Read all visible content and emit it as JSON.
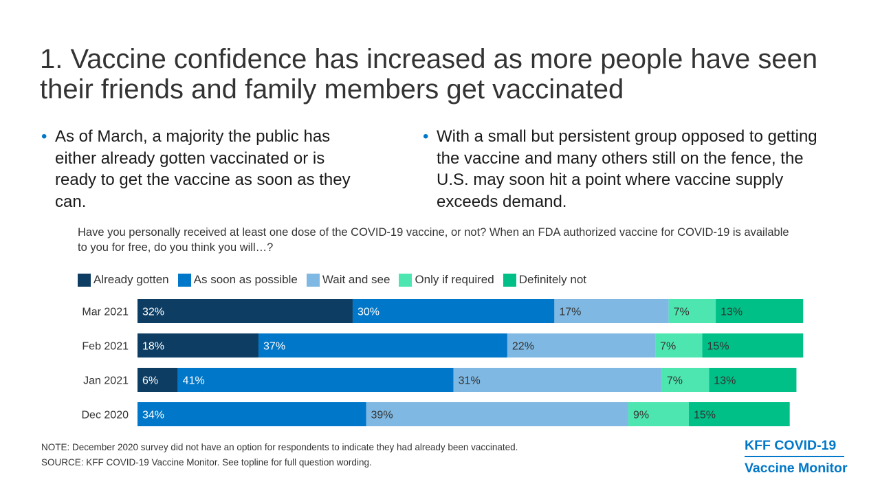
{
  "slide": {
    "title": "1. Vaccine confidence has increased as more people have seen their friends and family members get vaccinated",
    "bullets": [
      "As of March, a majority the public has either already gotten vaccinated or is ready to get the vaccine as soon as they can.",
      "With a small but persistent group opposed to getting the vaccine and many others still on the fence, the U.S. may soon hit a point where vaccine supply exceeds demand."
    ],
    "bullet_glyph": "•",
    "note": "NOTE: December 2020 survey did not have an option for respondents to indicate they had already been vaccinated.",
    "source": "SOURCE: KFF COVID-19 Vaccine Monitor. See topline for full question wording.",
    "logo": {
      "line1": "KFF COVID-19",
      "line2": "Vaccine Monitor",
      "color": "#0077c8"
    }
  },
  "chart_data": {
    "type": "bar",
    "orientation": "horizontal",
    "stacked": true,
    "title": "Have you personally received at least one dose of the COVID-19 vaccine, or not? When an FDA authorized vaccine for COVID-19 is available to you for free, do you think you will…?",
    "categories": [
      "Mar 2021",
      "Feb 2021",
      "Jan 2021",
      "Dec 2020"
    ],
    "series": [
      {
        "name": "Already gotten",
        "color": "#0d3d63",
        "label_color": "#ffffff",
        "values": [
          32,
          18,
          6,
          null
        ]
      },
      {
        "name": "As soon as possible",
        "color": "#0077c8",
        "label_color": "#ffffff",
        "values": [
          30,
          37,
          41,
          34
        ]
      },
      {
        "name": "Wait and see",
        "color": "#7fb8e2",
        "label_color": "#333333",
        "values": [
          17,
          22,
          31,
          39
        ]
      },
      {
        "name": "Only if required",
        "color": "#4ee6b0",
        "label_color": "#333333",
        "values": [
          7,
          7,
          7,
          9
        ]
      },
      {
        "name": "Definitely not",
        "color": "#00bf87",
        "label_color": "#333333",
        "values": [
          13,
          15,
          13,
          15
        ]
      }
    ],
    "value_suffix": "%",
    "legend_position": "top-left",
    "grid": false
  }
}
